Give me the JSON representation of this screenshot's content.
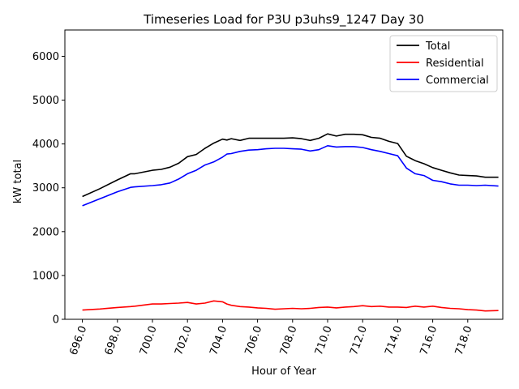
{
  "chart_data": {
    "type": "line",
    "title": "Timeseries Load for P3U p3uhs9_1247  Day 30",
    "xlabel": "Hour of Year",
    "ylabel": "kW total",
    "xlim": [
      695.0,
      720.0
    ],
    "ylim": [
      0,
      6600
    ],
    "x_ticks": [
      696,
      698,
      700,
      702,
      704,
      706,
      708,
      710,
      712,
      714,
      716,
      718
    ],
    "x_tick_labels": [
      "696.0",
      "698.0",
      "700.0",
      "702.0",
      "704.0",
      "706.0",
      "708.0",
      "710.0",
      "712.0",
      "714.0",
      "716.0",
      "718.0"
    ],
    "y_ticks": [
      0,
      1000,
      2000,
      3000,
      4000,
      5000,
      6000
    ],
    "y_tick_labels": [
      "0",
      "1000",
      "2000",
      "3000",
      "4000",
      "5000",
      "6000"
    ],
    "grid": false,
    "legend_position": "top-right",
    "x": [
      696.0,
      697.0,
      698.0,
      698.75,
      699.0,
      700.0,
      700.5,
      701.0,
      701.5,
      702.0,
      702.5,
      703.0,
      703.5,
      704.0,
      704.25,
      704.5,
      705.0,
      705.5,
      706.0,
      706.5,
      707.0,
      707.5,
      708.0,
      708.5,
      709.0,
      709.5,
      710.0,
      710.5,
      711.0,
      711.5,
      712.0,
      712.5,
      713.0,
      713.5,
      714.0,
      714.5,
      715.0,
      715.5,
      716.0,
      716.5,
      717.0,
      717.5,
      718.0,
      718.5,
      719.0,
      719.75
    ],
    "series": [
      {
        "name": "Total",
        "color": "#000000",
        "values": [
          2800,
          2980,
          3180,
          3320,
          3320,
          3400,
          3420,
          3470,
          3560,
          3710,
          3760,
          3900,
          4020,
          4110,
          4090,
          4120,
          4080,
          4130,
          4130,
          4130,
          4130,
          4130,
          4140,
          4120,
          4080,
          4130,
          4230,
          4180,
          4220,
          4220,
          4210,
          4150,
          4130,
          4060,
          4010,
          3720,
          3620,
          3550,
          3460,
          3400,
          3340,
          3290,
          3280,
          3270,
          3240,
          3240
        ]
      },
      {
        "name": "Residential",
        "color": "#ff0000",
        "values": [
          210,
          235,
          270,
          290,
          300,
          350,
          350,
          360,
          370,
          385,
          350,
          370,
          420,
          400,
          350,
          320,
          290,
          280,
          260,
          250,
          230,
          240,
          250,
          240,
          250,
          270,
          280,
          260,
          280,
          290,
          310,
          290,
          300,
          280,
          280,
          270,
          300,
          280,
          300,
          270,
          250,
          240,
          220,
          210,
          190,
          200
        ]
      },
      {
        "name": "Commercial",
        "color": "#0000ff",
        "values": [
          2590,
          2750,
          2910,
          3010,
          3020,
          3050,
          3070,
          3110,
          3200,
          3320,
          3400,
          3520,
          3590,
          3700,
          3770,
          3780,
          3830,
          3860,
          3870,
          3890,
          3900,
          3900,
          3890,
          3880,
          3840,
          3870,
          3960,
          3930,
          3940,
          3940,
          3920,
          3870,
          3830,
          3780,
          3730,
          3450,
          3320,
          3280,
          3170,
          3140,
          3090,
          3060,
          3060,
          3050,
          3060,
          3040
        ]
      }
    ]
  }
}
